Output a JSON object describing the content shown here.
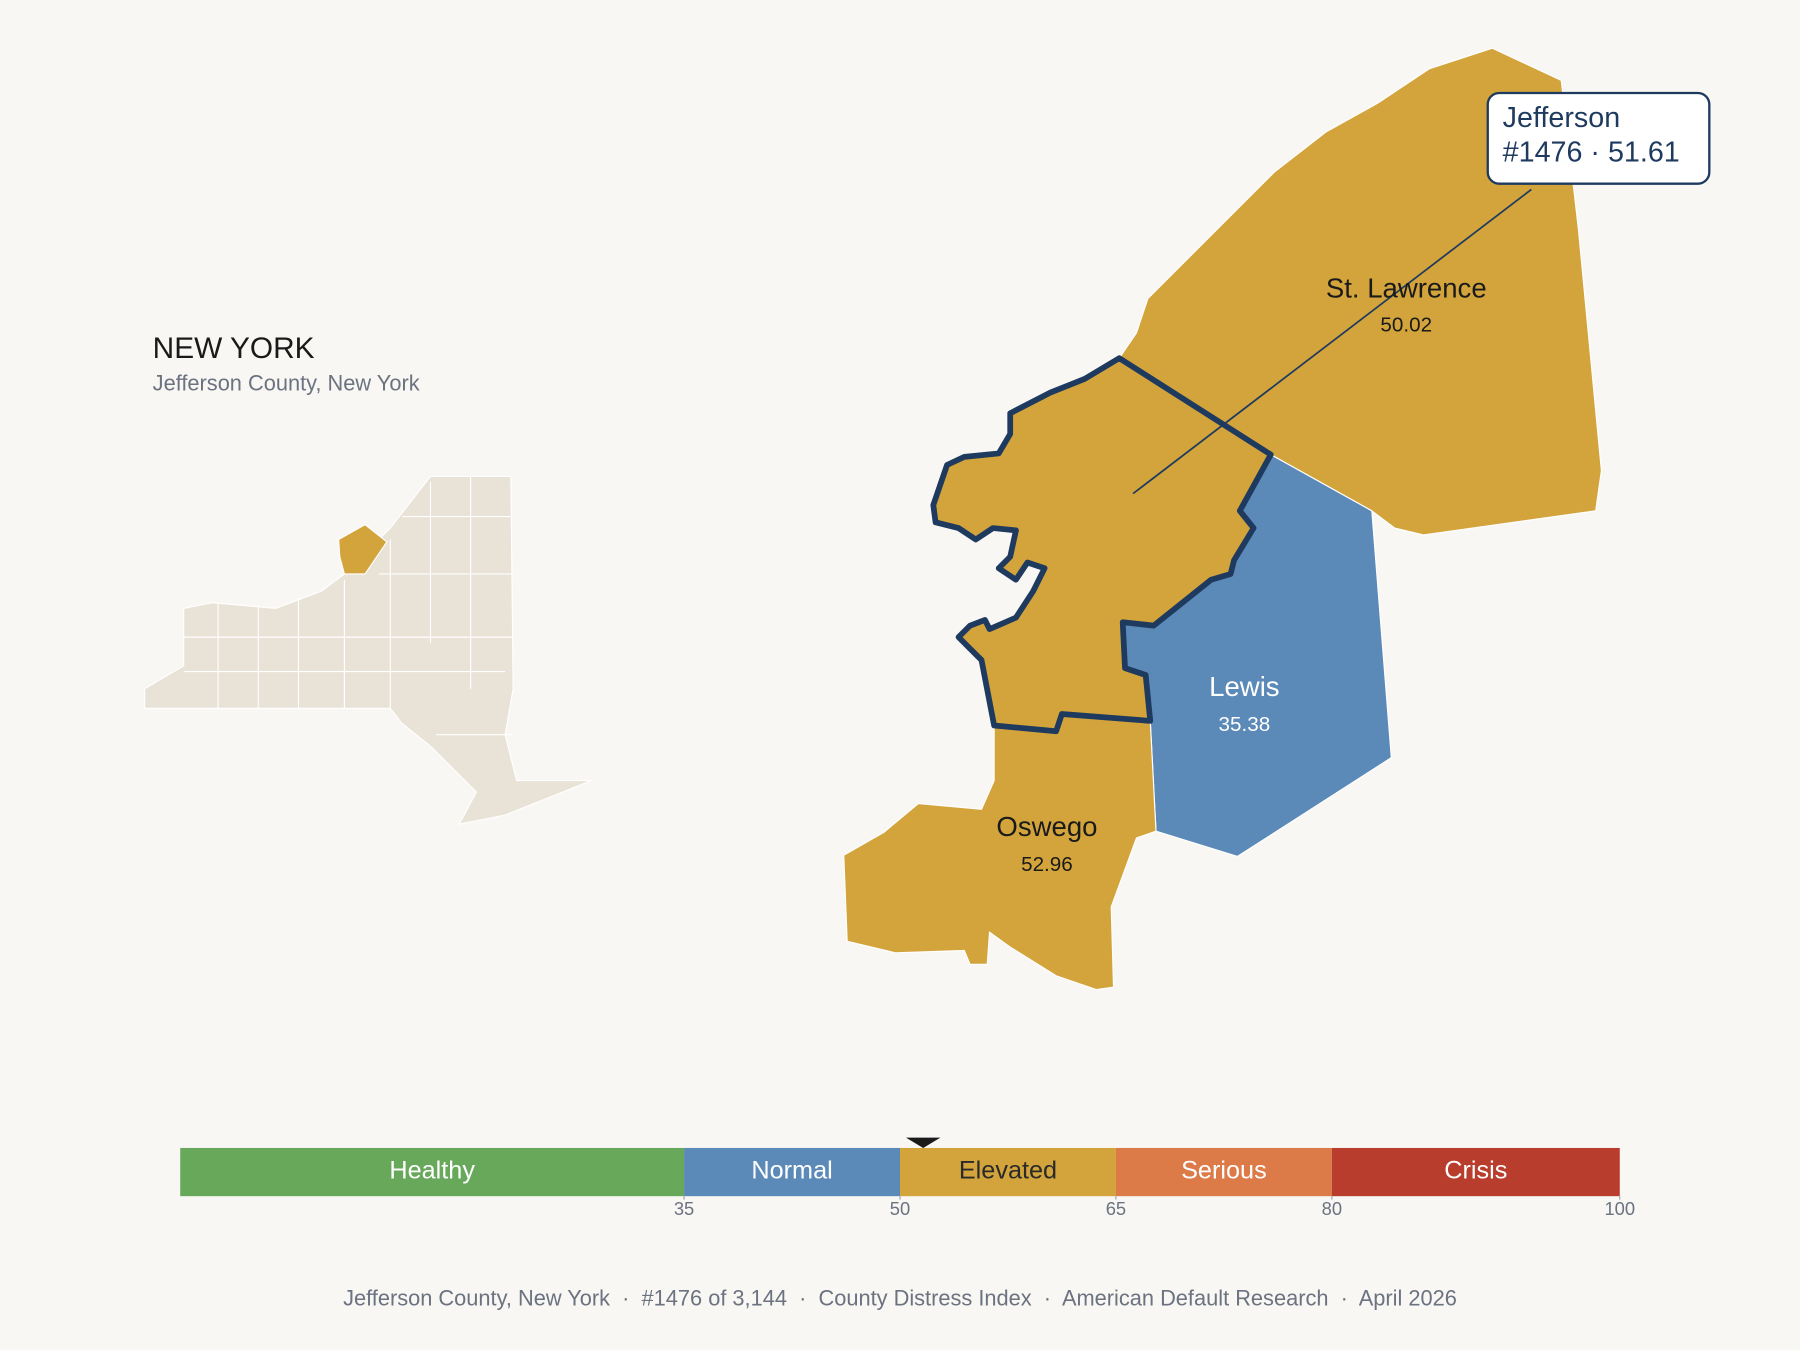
{
  "header": {
    "title": "NEW YORK",
    "subtitle": "Jefferson County, New York"
  },
  "counties": [
    {
      "name": "St. Lawrence",
      "value": 50.02
    },
    {
      "name": "Lewis",
      "value": 35.38
    },
    {
      "name": "Oswego",
      "value": 52.96
    }
  ],
  "callout": {
    "name": "Jefferson",
    "label": "#1476 · 51.61",
    "score": 51.61
  },
  "scale": {
    "xlim": [
      0,
      100
    ],
    "xticks": [
      35,
      50,
      65,
      80,
      100
    ],
    "bands": [
      {
        "name": "Healthy",
        "to": 35,
        "color": "#67a85a",
        "text_color": "#ffffff"
      },
      {
        "name": "Normal",
        "to": 50,
        "color": "#5b89b8",
        "text_color": "#ffffff"
      },
      {
        "name": "Elevated",
        "to": 65,
        "color": "#d3a43b",
        "text_color": "#2a2a2a"
      },
      {
        "name": "Serious",
        "to": 80,
        "color": "#dc7a48",
        "text_color": "#ffffff"
      },
      {
        "name": "Crisis",
        "to": 100,
        "color": "#b93d2d",
        "text_color": "#ffffff"
      }
    ]
  },
  "footer": "Jefferson County, New York  ·  #1476 of 3,144  ·  County Distress Index  ·  American Default Research  ·  April 2026"
}
